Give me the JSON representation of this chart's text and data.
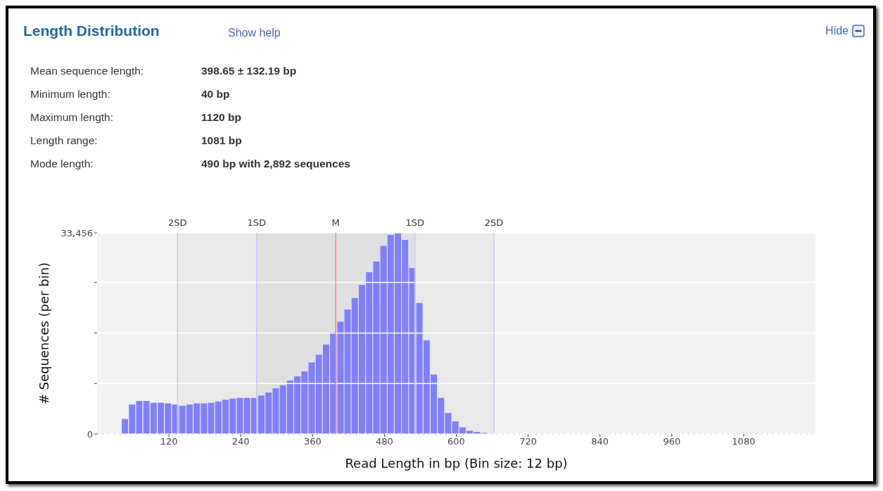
{
  "chart_data": {
    "type": "histogram",
    "title": "Length Distribution",
    "xlabel": "Read Length in bp (Bin size: 12 bp)",
    "ylabel": "# Sequences (per bin)",
    "annotations": [
      "Show help",
      "Hide",
      "Mean sequence length:",
      "398.65 ± 132.19 bp",
      "Minimum length:",
      "40 bp",
      "Maximum length:",
      "1120 bp",
      "Length range:",
      "1081 bp",
      "Mode length:",
      "490 bp with 2,892 sequences"
    ],
    "bins": [
      40,
      52,
      64,
      76,
      88,
      100,
      112,
      124,
      136,
      148,
      160,
      172,
      184,
      196,
      208,
      220,
      232,
      244,
      256,
      268,
      280,
      292,
      304,
      316,
      328,
      340,
      352,
      364,
      376,
      388,
      400,
      412,
      424,
      436,
      448,
      460,
      472,
      484,
      496,
      508,
      520,
      532,
      544,
      556,
      568,
      580,
      592,
      604,
      616,
      628,
      640,
      652
    ],
    "values": [
      2500,
      4900,
      5500,
      5500,
      5200,
      5200,
      5100,
      4900,
      4700,
      4900,
      5100,
      5100,
      5200,
      5400,
      5700,
      5900,
      6000,
      6000,
      6000,
      6400,
      6900,
      7600,
      8100,
      8900,
      9600,
      10400,
      11900,
      13200,
      14900,
      16900,
      18700,
      20700,
      22600,
      24800,
      26900,
      28700,
      31300,
      33100,
      33456,
      32300,
      27600,
      21800,
      15600,
      9900,
      6000,
      3500,
      2100,
      1100,
      550,
      350,
      200
    ],
    "color": "#8080ff",
    "xlim": [
      0,
      1200
    ],
    "xticks": [
      120,
      240,
      360,
      480,
      600,
      720,
      840,
      960,
      1080
    ],
    "ylim": [
      0,
      33456
    ],
    "yticks": [
      0,
      {
        "value": 8400,
        "label": null
      },
      {
        "value": 16800,
        "label": null
      },
      {
        "value": 25200,
        "label": null
      },
      {
        "value": 33456,
        "label": "33,456"
      }
    ],
    "grid": "y",
    "bands": [
      {
        "axis": "x",
        "from": 134.27,
        "to": 663.03,
        "color": "#e9e9e9"
      },
      {
        "axis": "x",
        "from": 266.46,
        "to": 530.84,
        "color": "#e0e0e0"
      }
    ],
    "ref_lines": [
      {
        "axis": "x",
        "value": 134.27,
        "label": "2SD",
        "color": "#c8c8ff"
      },
      {
        "axis": "x",
        "value": 266.46,
        "label": "1SD",
        "color": "#c8c8ff"
      },
      {
        "axis": "x",
        "value": 398.65,
        "label": "M",
        "color": "#ff8080"
      },
      {
        "axis": "x",
        "value": 530.84,
        "label": "1SD",
        "color": "#c8c8ff"
      },
      {
        "axis": "x",
        "value": 663.03,
        "label": "2SD",
        "color": "#c8c8ff"
      }
    ]
  }
}
